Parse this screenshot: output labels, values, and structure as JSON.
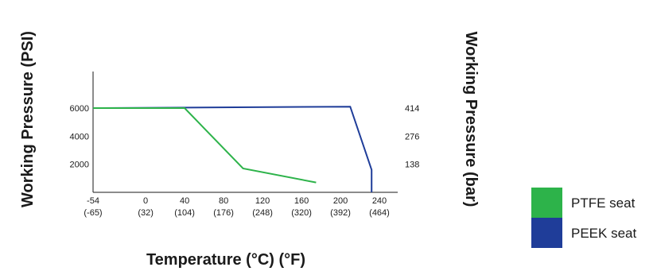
{
  "chart_data": {
    "type": "line",
    "xlabel": "Temperature (°C) (°F)",
    "ylabel": "Working Pressure (PSI)",
    "y2label": "Working Pressure (bar)",
    "x_ticks": [
      {
        "c": "-54",
        "f": "(-65)"
      },
      {
        "c": "0",
        "f": "(32)"
      },
      {
        "c": "40",
        "f": "(104)"
      },
      {
        "c": "80",
        "f": "(176)"
      },
      {
        "c": "120",
        "f": "(248)"
      },
      {
        "c": "160",
        "f": "(320)"
      },
      {
        "c": "200",
        "f": "(392)"
      },
      {
        "c": "240",
        "f": "(464)"
      }
    ],
    "y_ticks": [
      "6000",
      "4000",
      "2000"
    ],
    "y2_ticks": [
      "414",
      "276",
      "138"
    ],
    "xlim": [
      -70,
      280
    ],
    "ylim": [
      0,
      8000
    ],
    "grid": false,
    "legend_position": "right",
    "series": [
      {
        "name": "PTFE seat",
        "color": "#2db34a",
        "x": [
          -54,
          40,
          100,
          175
        ],
        "y": [
          6000,
          6000,
          1700,
          700
        ]
      },
      {
        "name": "PEEK seat",
        "color": "#1f3d99",
        "x": [
          -54,
          210,
          232,
          232
        ],
        "y": [
          6000,
          6100,
          1600,
          0
        ]
      }
    ]
  }
}
